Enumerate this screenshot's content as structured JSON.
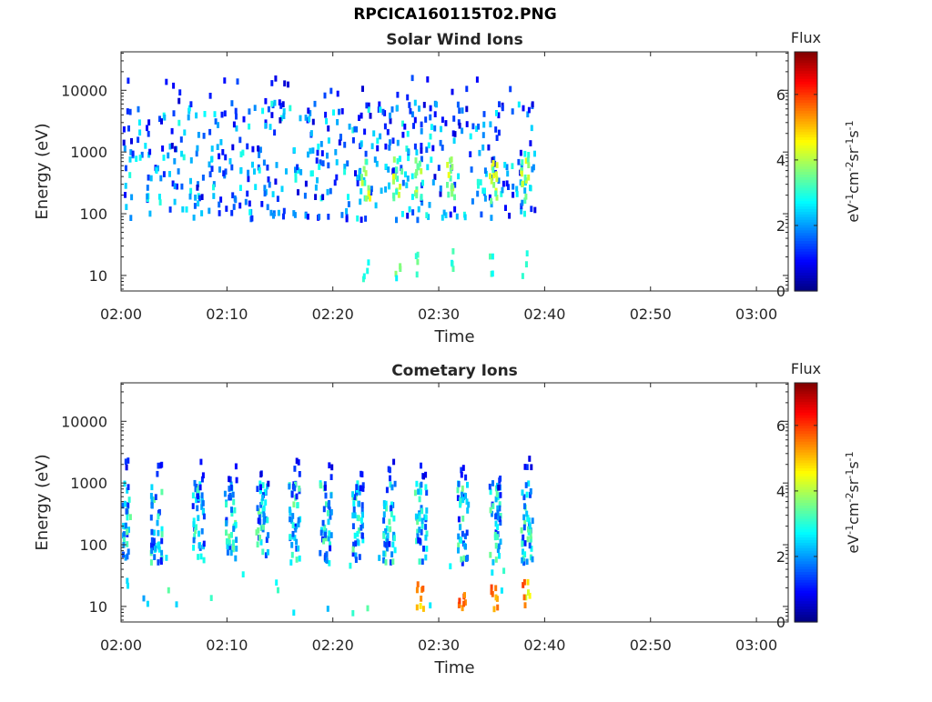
{
  "figure": {
    "supertitle": "RPCICA160115T02.PNG"
  },
  "chart_data": [
    {
      "type": "heatmap",
      "title": "Solar Wind Ions",
      "xlabel": "Time",
      "ylabel": "Energy (eV)",
      "x_ticks": [
        "02:00",
        "02:10",
        "02:20",
        "02:30",
        "02:40",
        "02:50",
        "03:00"
      ],
      "y_ticks": [
        "10",
        "100",
        "1000",
        "10000"
      ],
      "y_scale": "log",
      "xlim": [
        "02:00",
        "03:03"
      ],
      "ylim": [
        5.6,
        42000
      ],
      "data_end_time": "02:39",
      "colorbar": {
        "title": "Flux",
        "label": "eV-1cm-2sr-1s-1",
        "ticks": [
          "0",
          "2",
          "4",
          "6"
        ],
        "range": [
          0,
          7.3
        ],
        "colormap": "jet"
      },
      "distribution": "scattered ions mostly 100-5000 eV, sparse points up to ~15000 eV, occasional vertical bursts down to ~10 eV",
      "intense_bursts": [
        "02:23",
        "02:26",
        "02:28",
        "02:31",
        "02:35",
        "02:38"
      ]
    },
    {
      "type": "heatmap",
      "title": "Cometary Ions",
      "xlabel": "Time",
      "ylabel": "Energy (eV)",
      "x_ticks": [
        "02:00",
        "02:10",
        "02:20",
        "02:30",
        "02:40",
        "02:50",
        "03:00"
      ],
      "y_ticks": [
        "10",
        "100",
        "1000",
        "10000"
      ],
      "y_scale": "log",
      "xlim": [
        "02:00",
        "03:03"
      ],
      "ylim": [
        5.6,
        42000
      ],
      "data_end_time": "02:39",
      "colorbar": {
        "title": "Flux",
        "label": "eV-1cm-2sr-1s-1",
        "ticks": [
          "0",
          "2",
          "4",
          "6"
        ],
        "range": [
          0,
          7.3
        ],
        "colormap": "jet"
      },
      "distribution": "periodic vertical stripes of ions mainly 50-800 eV roughly every 3 minutes, strong low-energy (10-30 eV) flux near 02:28-02:38",
      "stripe_times": [
        "02:00",
        "02:03",
        "02:07",
        "02:10",
        "02:13",
        "02:16",
        "02:19",
        "02:22",
        "02:25",
        "02:28",
        "02:32",
        "02:35",
        "02:38"
      ]
    }
  ]
}
